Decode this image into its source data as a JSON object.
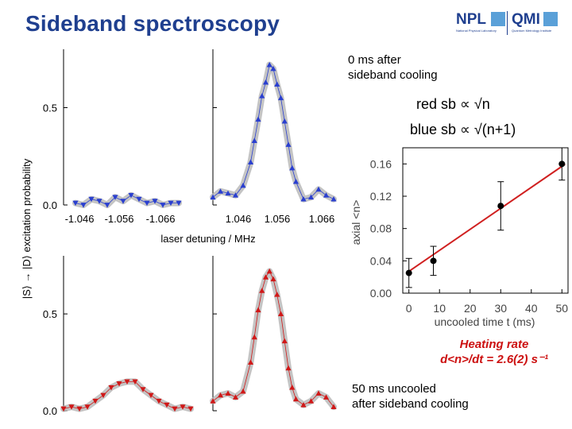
{
  "slide": {
    "title": "Sideband spectroscopy",
    "logo": {
      "npl": "NPL",
      "npl_sub": "National Physical Laboratory",
      "qmi": "QMI",
      "qmi_sub": "Quantum Metrology Institute"
    },
    "note_top": [
      "0 ms after",
      "sideband cooling"
    ],
    "note_bottom": [
      "50 ms uncooled",
      "after sideband cooling"
    ],
    "red_sb_label": "red sb ∝ √n",
    "blue_sb_label": "blue sb ∝ √(n+1)",
    "heating": {
      "line1": "Heating rate",
      "line2": "d<n>/dt = 2.6(2) s⁻¹"
    },
    "colors": {
      "blue": "#2a3fcf",
      "red": "#d01818",
      "fit": "#b5b5b5",
      "line": "#d02020"
    }
  },
  "chart_data": [
    {
      "type": "scatter",
      "panel": "top-red-sideband",
      "ylabel": "|S⟩ → |D⟩ excitation probability",
      "xlabel": "laser detuning  /  MHz",
      "xticks": [
        "-1.046",
        "-1.056",
        "-1.066"
      ],
      "yticks": [
        "0.0",
        "0.5"
      ],
      "ylim": [
        0,
        0.8
      ],
      "x": [
        -1.043,
        -1.045,
        -1.047,
        -1.049,
        -1.051,
        -1.053,
        -1.055,
        -1.057,
        -1.059,
        -1.061,
        -1.063,
        -1.065,
        -1.067,
        -1.069
      ],
      "y": [
        0.01,
        0.01,
        0.0,
        0.02,
        0.01,
        0.03,
        0.05,
        0.02,
        0.04,
        0.0,
        0.02,
        0.03,
        0.0,
        0.01
      ]
    },
    {
      "type": "scatter",
      "panel": "top-blue-sideband",
      "xticks": [
        "1.046",
        "1.056",
        "1.066"
      ],
      "ylim": [
        0,
        0.8
      ],
      "x": [
        1.04,
        1.042,
        1.044,
        1.046,
        1.048,
        1.05,
        1.051,
        1.052,
        1.053,
        1.054,
        1.055,
        1.056,
        1.057,
        1.058,
        1.059,
        1.06,
        1.061,
        1.062,
        1.064,
        1.066,
        1.068,
        1.07,
        1.072
      ],
      "y": [
        0.04,
        0.07,
        0.06,
        0.05,
        0.1,
        0.22,
        0.33,
        0.44,
        0.56,
        0.63,
        0.72,
        0.7,
        0.62,
        0.55,
        0.43,
        0.31,
        0.19,
        0.12,
        0.03,
        0.04,
        0.08,
        0.05,
        0.03
      ]
    },
    {
      "type": "scatter",
      "panel": "bottom-red-sideband",
      "yticks": [
        "0.0",
        "0.5"
      ],
      "ylim": [
        0,
        0.8
      ],
      "x": [
        -1.04,
        -1.042,
        -1.044,
        -1.046,
        -1.048,
        -1.05,
        -1.052,
        -1.054,
        -1.056,
        -1.058,
        -1.06,
        -1.062,
        -1.064,
        -1.066,
        -1.068,
        -1.07,
        -1.072
      ],
      "y": [
        0.01,
        0.02,
        0.01,
        0.03,
        0.05,
        0.08,
        0.11,
        0.15,
        0.15,
        0.14,
        0.12,
        0.08,
        0.05,
        0.02,
        0.01,
        0.02,
        0.01
      ]
    },
    {
      "type": "scatter",
      "panel": "bottom-blue-sideband",
      "ylim": [
        0,
        0.8
      ],
      "x": [
        1.04,
        1.042,
        1.044,
        1.046,
        1.048,
        1.05,
        1.051,
        1.052,
        1.053,
        1.054,
        1.055,
        1.056,
        1.057,
        1.058,
        1.059,
        1.06,
        1.061,
        1.062,
        1.064,
        1.066,
        1.068,
        1.07,
        1.072
      ],
      "y": [
        0.05,
        0.08,
        0.09,
        0.07,
        0.1,
        0.25,
        0.38,
        0.52,
        0.62,
        0.69,
        0.72,
        0.68,
        0.6,
        0.5,
        0.36,
        0.22,
        0.12,
        0.06,
        0.03,
        0.05,
        0.09,
        0.07,
        0.02
      ]
    },
    {
      "type": "scatter",
      "panel": "heating-rate",
      "xlabel": "uncooled time t  (ms)",
      "ylabel": "axial <n>",
      "xticks": [
        "0",
        "10",
        "20",
        "30",
        "40",
        "50"
      ],
      "yticks": [
        "0.00",
        "0.04",
        "0.08",
        "0.12",
        "0.16"
      ],
      "xlim": [
        -2,
        52
      ],
      "ylim": [
        0,
        0.18
      ],
      "points": [
        {
          "x": 0,
          "y": 0.025,
          "err": 0.018
        },
        {
          "x": 8,
          "y": 0.04,
          "err": 0.018
        },
        {
          "x": 30,
          "y": 0.108,
          "err": 0.03
        },
        {
          "x": 50,
          "y": 0.16,
          "err": 0.02
        }
      ],
      "fit": {
        "intercept": 0.027,
        "slope": 0.0026
      }
    }
  ]
}
